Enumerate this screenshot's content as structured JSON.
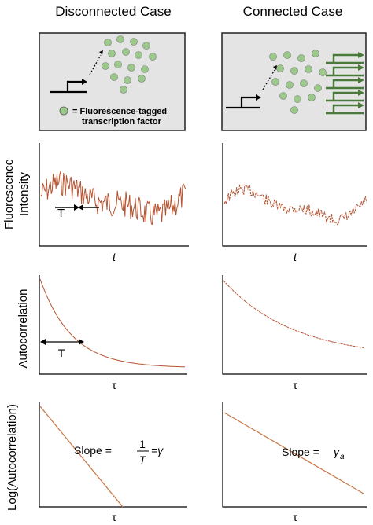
{
  "columns": {
    "left_title": "Disconnected Case",
    "right_title": "Connected Case"
  },
  "legend": {
    "line1": "= Fluorescence-tagged",
    "line2": "transcription factor"
  },
  "row_labels": {
    "fluorescence_line1": "Fluorescence",
    "fluorescence_line2": "Intensity",
    "autocorrelation": "Autocorrelation",
    "log_autocorrelation": "Log(Autocorrelation)"
  },
  "axis_labels": {
    "time": "t",
    "lag": "τ"
  },
  "annotations": {
    "time_scale": "T",
    "slope_prefix": "Slope =",
    "slope_num": "1",
    "slope_den": "T",
    "slope_eq_gamma": "=γ",
    "slope_gamma_a": "γ",
    "slope_gamma_a_sub": "a"
  },
  "colors": {
    "trace": "#b5532f",
    "box_fill": "#e4e4e4",
    "dot": "#9bc98a",
    "gene": "#4a7a3a"
  }
}
